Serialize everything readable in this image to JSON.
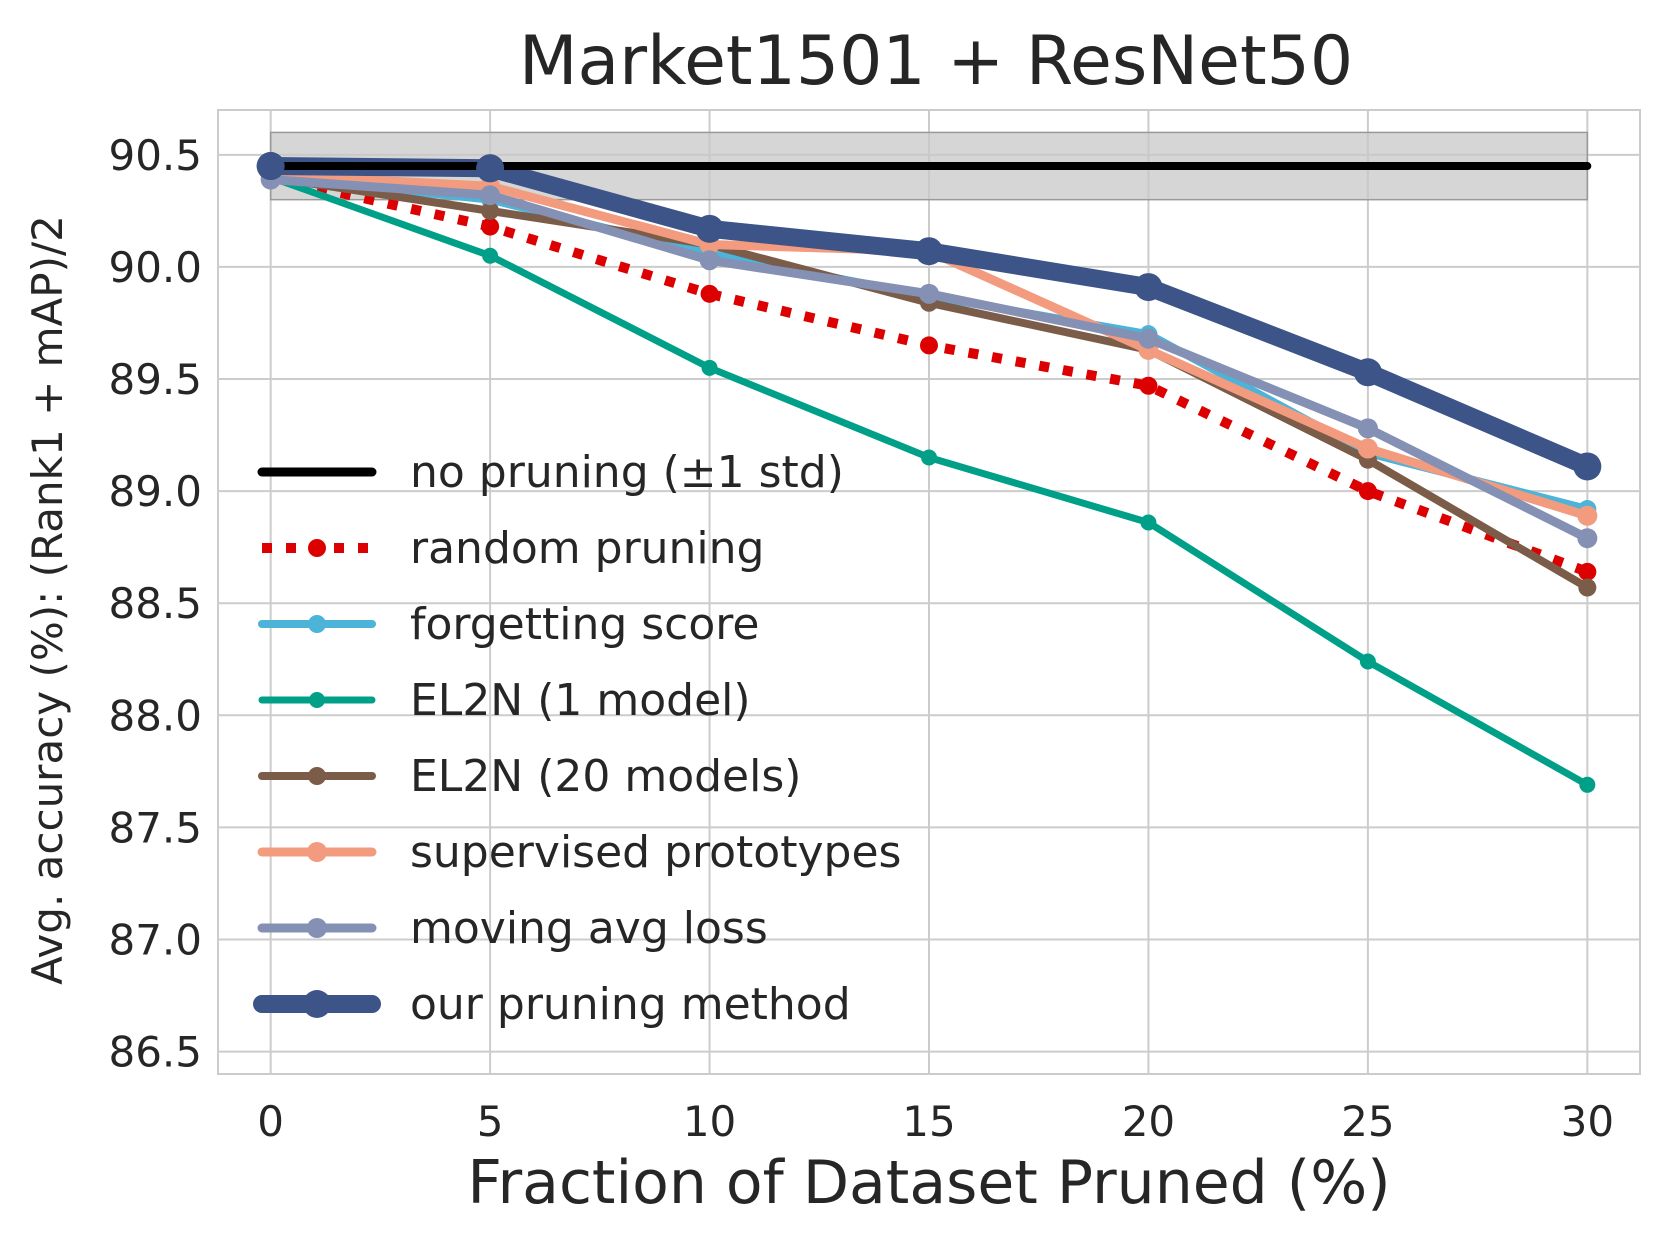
{
  "chart_data": {
    "type": "line",
    "title": "Market1501 + ResNet50",
    "xlabel": "Fraction of Dataset Pruned (%)",
    "ylabel": "Avg. accuracy (%): (Rank1 + mAP)/2",
    "xlim": [
      -1.2,
      31.2
    ],
    "ylim": [
      86.4,
      90.7
    ],
    "xticks": [
      0,
      5,
      10,
      15,
      20,
      25,
      30
    ],
    "xtick_labels": [
      "0",
      "5",
      "10",
      "15",
      "20",
      "25",
      "30"
    ],
    "yticks": [
      86.5,
      87.0,
      87.5,
      88.0,
      88.5,
      89.0,
      89.5,
      90.0,
      90.5
    ],
    "ytick_labels": [
      "86.5",
      "87.0",
      "87.5",
      "88.0",
      "88.5",
      "89.0",
      "89.5",
      "90.0",
      "90.5"
    ],
    "grid": true,
    "legend_position": "lower-left",
    "baseline": {
      "name": "no pruning (±1 std)",
      "value": 90.45,
      "std_band": [
        90.3,
        90.6
      ],
      "x_range": [
        0,
        30
      ],
      "color": "#000000",
      "band_color": "#c8c8c8"
    },
    "x": [
      0,
      5,
      10,
      15,
      20,
      25,
      30
    ],
    "series": [
      {
        "name": "random pruning",
        "values": [
          90.4,
          90.18,
          89.88,
          89.65,
          89.47,
          89.0,
          88.64
        ],
        "color": "#dd0000",
        "style": "dotted",
        "width": 10,
        "marker": 9
      },
      {
        "name": "forgetting score",
        "values": [
          90.4,
          90.3,
          90.06,
          89.87,
          89.7,
          89.17,
          88.92
        ],
        "color": "#4db3d8",
        "style": "solid",
        "width": 8,
        "marker": 9
      },
      {
        "name": "EL2N (1 model)",
        "values": [
          90.4,
          90.05,
          89.55,
          89.15,
          88.86,
          88.24,
          87.69
        ],
        "color": "#00a088",
        "style": "solid",
        "width": 7,
        "marker": 8
      },
      {
        "name": "EL2N (20 models)",
        "values": [
          90.4,
          90.25,
          90.1,
          89.84,
          89.63,
          89.14,
          88.57
        ],
        "color": "#7b5c49",
        "style": "solid",
        "width": 8,
        "marker": 9
      },
      {
        "name": "supervised prototypes",
        "values": [
          90.41,
          90.36,
          90.1,
          90.07,
          89.63,
          89.19,
          88.89
        ],
        "color": "#f39b7f",
        "style": "solid",
        "width": 9,
        "marker": 10
      },
      {
        "name": "moving avg loss",
        "values": [
          90.39,
          90.32,
          90.03,
          89.88,
          89.68,
          89.28,
          88.79
        ],
        "color": "#8491b4",
        "style": "solid",
        "width": 9,
        "marker": 10
      },
      {
        "name": "our pruning method",
        "values": [
          90.45,
          90.44,
          90.17,
          90.07,
          89.91,
          89.53,
          89.11
        ],
        "color": "#3c5488",
        "style": "solid",
        "width": 18,
        "marker": 14
      }
    ]
  }
}
